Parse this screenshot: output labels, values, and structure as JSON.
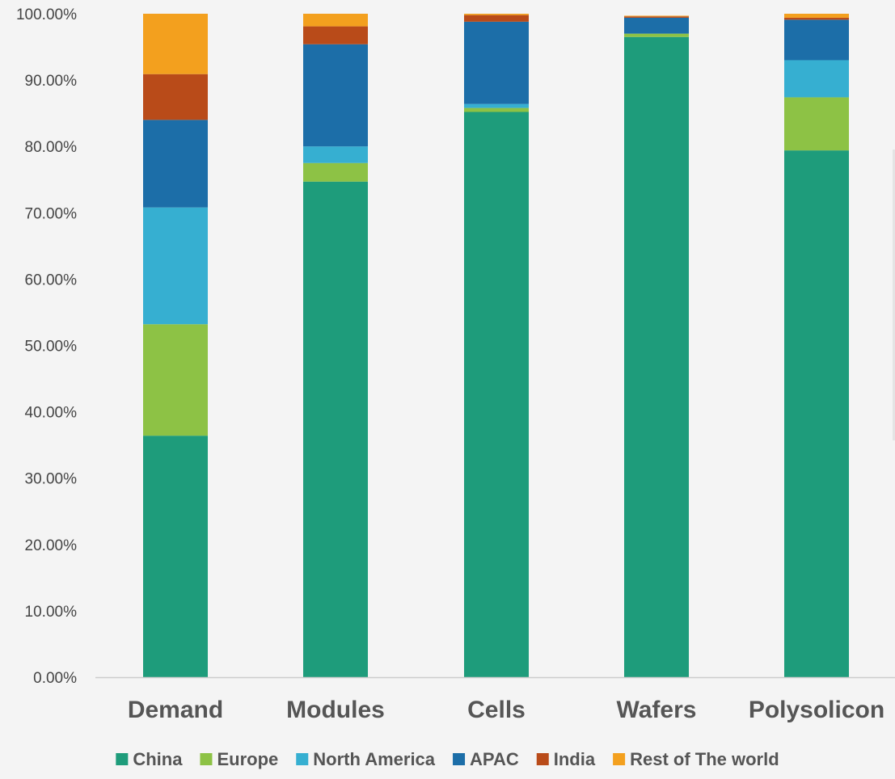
{
  "chart_data": {
    "type": "bar",
    "stacked": true,
    "categories": [
      "Demand",
      "Modules",
      "Cells",
      "Wafers",
      "Polysolicon"
    ],
    "series": [
      {
        "name": "China",
        "color": "#1e9c7b",
        "values": [
          36.4,
          74.7,
          85.2,
          96.5,
          79.4
        ]
      },
      {
        "name": "Europe",
        "color": "#8dc245",
        "values": [
          16.8,
          2.8,
          0.6,
          0.5,
          8.0
        ]
      },
      {
        "name": "North America",
        "color": "#36afd1",
        "values": [
          17.6,
          2.5,
          0.6,
          0.0,
          5.6
        ]
      },
      {
        "name": "APAC",
        "color": "#1c6ea8",
        "values": [
          13.2,
          15.4,
          12.4,
          2.4,
          6.1
        ]
      },
      {
        "name": "India",
        "color": "#b94b19",
        "values": [
          6.9,
          2.7,
          1.0,
          0.2,
          0.3
        ]
      },
      {
        "name": "Rest of The world",
        "color": "#f3a01e",
        "values": [
          9.1,
          1.9,
          0.2,
          0.1,
          0.6
        ]
      }
    ],
    "ylim": [
      0,
      100
    ],
    "yticks": [
      "0.00%",
      "10.00%",
      "20.00%",
      "30.00%",
      "40.00%",
      "50.00%",
      "60.00%",
      "70.00%",
      "80.00%",
      "90.00%",
      "100.00%"
    ],
    "grid": false,
    "legend": "bottom"
  }
}
